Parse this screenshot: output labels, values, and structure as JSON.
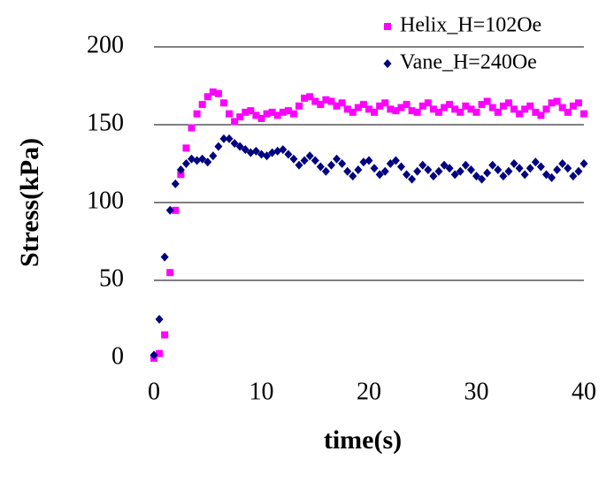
{
  "chart_data": {
    "type": "scatter",
    "xlabel": "time(s)",
    "ylabel": "Stress(kPa)",
    "x": [
      0,
      0.5,
      1,
      1.5,
      2,
      2.5,
      3,
      3.5,
      4,
      4.5,
      5,
      5.5,
      6,
      6.5,
      7,
      7.5,
      8,
      8.5,
      9,
      9.5,
      10,
      10.5,
      11,
      11.5,
      12,
      12.5,
      13,
      13.5,
      14,
      14.5,
      15,
      15.5,
      16,
      16.5,
      17,
      17.5,
      18,
      18.5,
      19,
      19.5,
      20,
      20.5,
      21,
      21.5,
      22,
      22.5,
      23,
      23.5,
      24,
      24.5,
      25,
      25.5,
      26,
      26.5,
      27,
      27.5,
      28,
      28.5,
      29,
      29.5,
      30,
      30.5,
      31,
      31.5,
      32,
      32.5,
      33,
      33.5,
      34,
      34.5,
      35,
      35.5,
      36,
      36.5,
      37,
      37.5,
      38,
      38.5,
      39,
      39.5,
      40
    ],
    "series": [
      {
        "name": "Helix_H=102Oe",
        "color": "#ff00ff",
        "marker": "square",
        "values": [
          0,
          3,
          15,
          55,
          95,
          118,
          135,
          148,
          157,
          163,
          168,
          171,
          170,
          164,
          157,
          152,
          155,
          158,
          159,
          156,
          154,
          157,
          158,
          156,
          158,
          159,
          157,
          162,
          167,
          168,
          165,
          163,
          166,
          165,
          162,
          164,
          160,
          158,
          161,
          163,
          160,
          158,
          162,
          164,
          160,
          159,
          161,
          163,
          159,
          158,
          162,
          164,
          160,
          158,
          161,
          163,
          160,
          158,
          162,
          160,
          158,
          163,
          165,
          161,
          158,
          162,
          164,
          160,
          157,
          160,
          162,
          158,
          156,
          160,
          164,
          165,
          161,
          158,
          162,
          164,
          157
        ]
      },
      {
        "name": "Vane_H=240Oe",
        "color": "#000080",
        "marker": "diamond",
        "values": [
          2,
          25,
          65,
          95,
          112,
          121,
          125,
          128,
          127,
          128,
          126,
          130,
          136,
          141,
          141,
          138,
          136,
          134,
          132,
          133,
          131,
          130,
          132,
          133,
          134,
          131,
          128,
          124,
          127,
          130,
          127,
          123,
          120,
          124,
          128,
          125,
          120,
          117,
          121,
          126,
          127,
          122,
          118,
          120,
          125,
          127,
          123,
          118,
          115,
          120,
          124,
          121,
          117,
          120,
          124,
          122,
          118,
          120,
          124,
          121,
          117,
          115,
          119,
          124,
          121,
          117,
          120,
          125,
          122,
          118,
          122,
          126,
          123,
          118,
          116,
          121,
          125,
          122,
          117,
          120,
          125
        ]
      }
    ],
    "xlim": [
      0,
      40
    ],
    "xticks": [
      0,
      10,
      20,
      30,
      40
    ],
    "ylim": [
      0,
      200
    ],
    "yticks": [
      0,
      50,
      100,
      150,
      200
    ],
    "grid": true,
    "legend": "top-right"
  }
}
